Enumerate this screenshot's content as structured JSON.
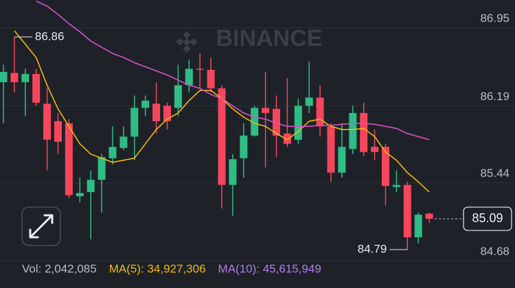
{
  "chart_data": {
    "type": "candlestick",
    "watermark": "BINANCE",
    "up_color": "#2ebd85",
    "down_color": "#f6465d",
    "ylim": [
      84.65,
      87.22
    ],
    "yticks": [
      84.68,
      85.44,
      86.19,
      86.95
    ],
    "grid": true,
    "open": [
      86.42,
      86.51,
      86.42,
      86.5,
      86.21,
      86.04,
      86.02,
      85.31,
      85.35,
      85.47,
      85.68,
      85.78,
      85.89,
      86.17,
      86.21,
      86.19,
      86.17,
      86.39,
      86.55,
      86.54,
      86.36,
      85.42,
      85.68,
      85.9,
      86.17,
      86.16,
      85.92,
      85.86,
      86.19,
      86.27,
      85.99,
      85.54,
      85.77,
      86.12,
      85.79,
      85.79,
      85.4,
      85.42,
      84.91,
      85.14
    ],
    "high": [
      86.59,
      86.86,
      86.55,
      86.55,
      86.36,
      86.12,
      86.06,
      85.49,
      85.56,
      85.72,
      85.99,
      85.99,
      86.29,
      86.29,
      86.42,
      86.22,
      86.59,
      86.64,
      86.7,
      86.66,
      86.39,
      85.72,
      86.02,
      86.19,
      86.52,
      86.29,
      86.46,
      86.26,
      86.62,
      86.39,
      86.02,
      86.02,
      86.19,
      86.22,
      85.96,
      85.82,
      85.56,
      85.45,
      85.15,
      85.15
    ],
    "low": [
      86.02,
      86.32,
      86.09,
      86.19,
      85.56,
      85.72,
      85.29,
      85.25,
      84.89,
      85.15,
      85.62,
      85.76,
      85.66,
      86.09,
      85.92,
      85.96,
      86.09,
      86.32,
      86.36,
      86.32,
      85.19,
      85.12,
      85.49,
      85.89,
      85.59,
      85.69,
      85.79,
      85.82,
      86.12,
      85.89,
      85.45,
      85.49,
      85.72,
      85.7,
      85.66,
      85.22,
      85.35,
      84.79,
      84.85,
      85.05
    ],
    "close": [
      86.52,
      86.42,
      86.5,
      86.22,
      85.86,
      85.84,
      85.32,
      85.34,
      85.47,
      85.69,
      85.79,
      85.89,
      86.17,
      86.24,
      86.04,
      86.04,
      86.39,
      86.55,
      86.54,
      86.36,
      85.42,
      85.67,
      85.9,
      86.17,
      86.12,
      85.9,
      85.82,
      86.19,
      86.27,
      85.99,
      85.54,
      85.79,
      86.12,
      85.74,
      85.74,
      85.41,
      85.42,
      84.91,
      85.13,
      85.09
    ],
    "series": [
      {
        "color": "#f0b90b",
        "values": [
          null,
          86.92,
          86.79,
          86.66,
          86.39,
          86.16,
          85.99,
          85.82,
          85.72,
          85.68,
          85.64,
          85.66,
          85.68,
          85.82,
          85.96,
          86.06,
          86.12,
          86.24,
          86.34,
          86.34,
          86.26,
          86.16,
          86.08,
          86.02,
          85.99,
          85.92,
          85.86,
          85.94,
          86.04,
          86.06,
          85.99,
          85.96,
          85.96,
          85.97,
          85.89,
          85.74,
          85.66,
          85.54,
          85.45,
          85.35
        ]
      },
      {
        "color": "#d94fc8",
        "values": [
          null,
          null,
          null,
          87.21,
          87.16,
          87.08,
          86.99,
          86.91,
          86.82,
          86.76,
          86.7,
          86.66,
          86.61,
          86.57,
          86.53,
          86.49,
          86.44,
          86.39,
          86.36,
          86.3,
          86.26,
          86.19,
          86.12,
          86.08,
          86.06,
          86.02,
          85.99,
          85.99,
          85.99,
          86.0,
          86.0,
          86.01,
          86.02,
          86.02,
          86.01,
          85.99,
          85.97,
          85.92,
          85.89,
          85.86
        ]
      }
    ],
    "footer": [
      {
        "text": "Vol: 2,042,085",
        "color": "#b7bdc6"
      },
      {
        "text": "MA(5): 34,927,306",
        "color": "#f0b90b"
      },
      {
        "text": "MA(10): 45,615,949",
        "color": "#b07ce8"
      }
    ]
  }
}
